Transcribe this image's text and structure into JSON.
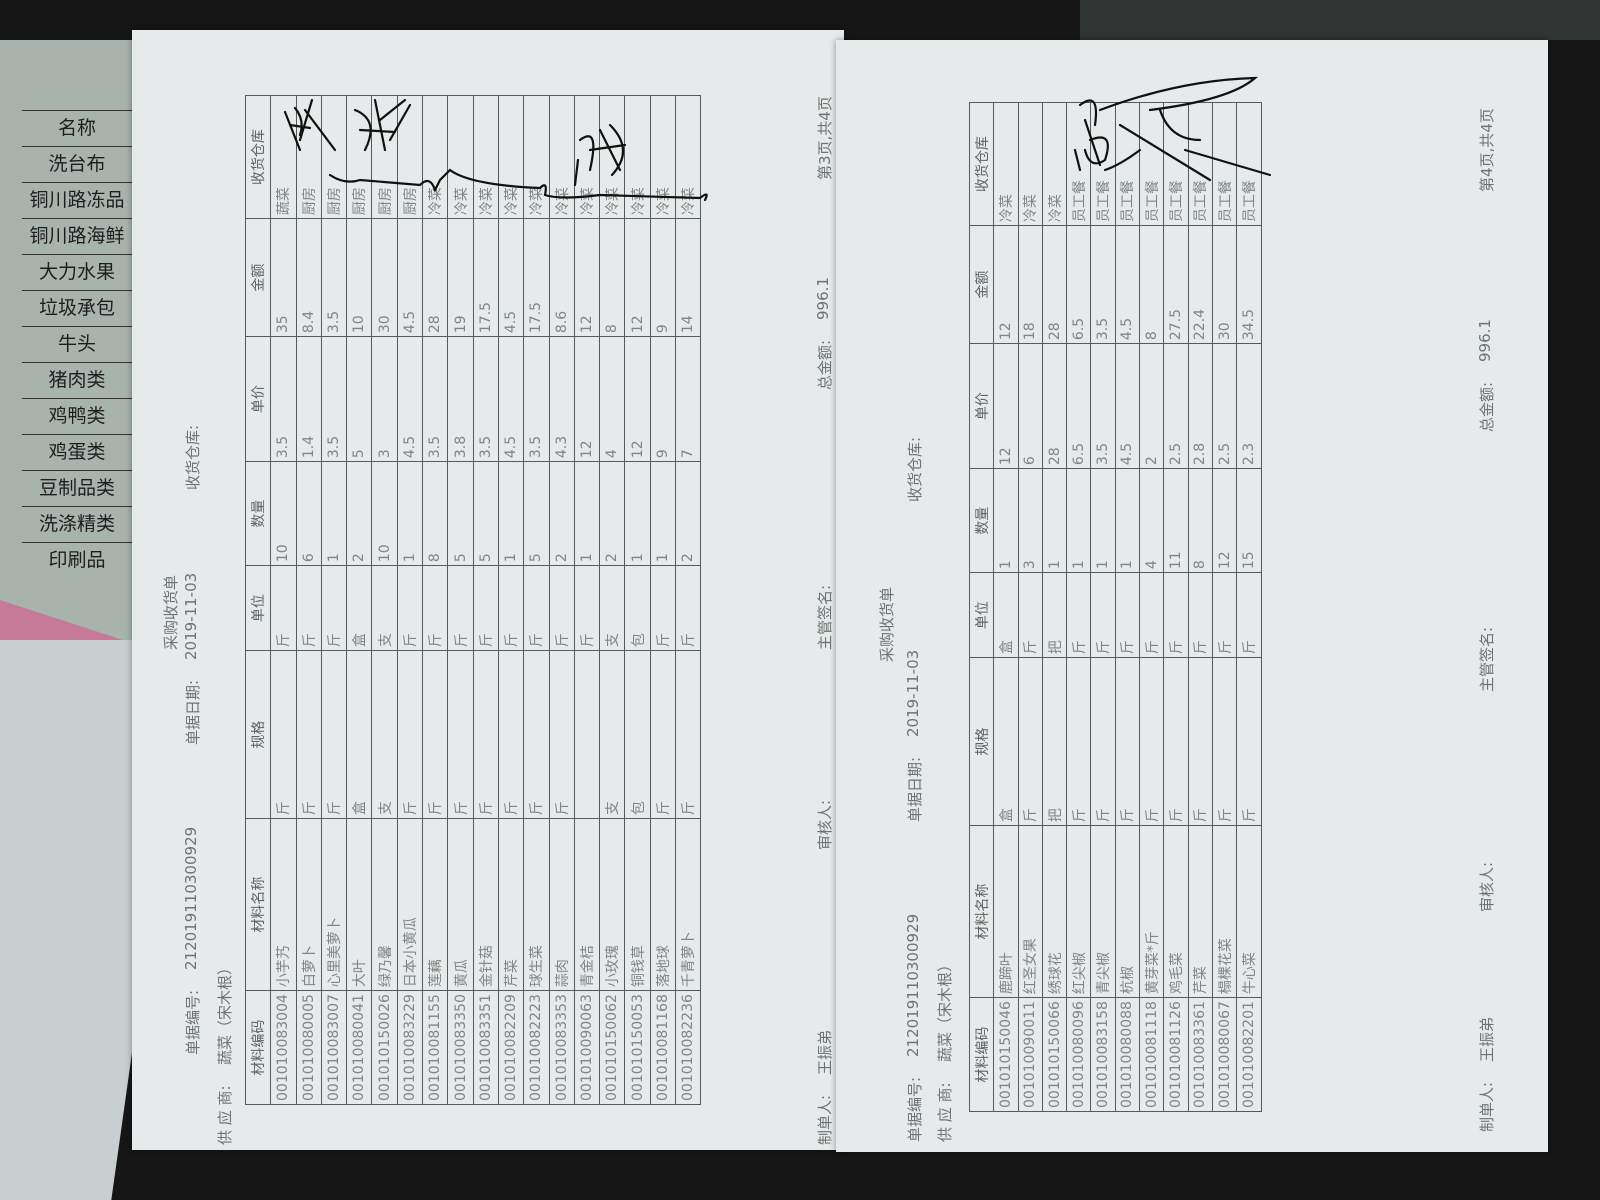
{
  "background_list": {
    "header": "名称",
    "items": [
      "洗台布",
      "铜川路冻品",
      "铜川路海鲜",
      "大力水果",
      "垃圾承包",
      "牛头",
      "猪肉类",
      "鸡鸭类",
      "鸡蛋类",
      "豆制品类",
      "洗涤精类",
      "印刷品"
    ]
  },
  "columns": [
    "材料编码",
    "材料名称",
    "规格",
    "单位",
    "数量",
    "单价",
    "金额",
    "收货仓库"
  ],
  "pages": [
    {
      "title": "采购收货单",
      "doc_no_label": "单据编号:",
      "doc_no": "212019110300929",
      "date_label": "单据日期:",
      "date": "2019-11-03",
      "warehouse_label": "收货仓库:",
      "supplier_label": "供 应 商:",
      "supplier": "蔬菜（宋木根）",
      "maker_label": "制单人:",
      "maker": "王振弟",
      "auditor_label": "审核人:",
      "manager_label": "主管签名:",
      "total_label": "总金额:",
      "total": "996.1",
      "page_info": "第3页,共4页",
      "rows": [
        [
          "001010083004",
          "小芋艿",
          "斤",
          "斤",
          "10",
          "3.5",
          "35",
          "蔬菜"
        ],
        [
          "001010080005",
          "白萝卜",
          "斤",
          "斤",
          "6",
          "1.4",
          "8.4",
          "厨房"
        ],
        [
          "001010083007",
          "心里美萝卜",
          "斤",
          "斤",
          "1",
          "3.5",
          "3.5",
          "厨房"
        ],
        [
          "001010080041",
          "大叶",
          "盒",
          "盒",
          "2",
          "5",
          "10",
          "厨房"
        ],
        [
          "001010150026",
          "绿乃馨",
          "支",
          "支",
          "10",
          "3",
          "30",
          "厨房"
        ],
        [
          "001010083229",
          "日本小黄瓜",
          "斤",
          "斤",
          "1",
          "4.5",
          "4.5",
          "厨房"
        ],
        [
          "001010081155",
          "莲藕",
          "斤",
          "斤",
          "8",
          "3.5",
          "28",
          "冷菜"
        ],
        [
          "001010083350",
          "黄瓜",
          "斤",
          "斤",
          "5",
          "3.8",
          "19",
          "冷菜"
        ],
        [
          "001010083351",
          "金针菇",
          "斤",
          "斤",
          "5",
          "3.5",
          "17.5",
          "冷菜"
        ],
        [
          "001010082209",
          "芹菜",
          "斤",
          "斤",
          "1",
          "4.5",
          "4.5",
          "冷菜"
        ],
        [
          "001010082223",
          "球生菜",
          "斤",
          "斤",
          "5",
          "3.5",
          "17.5",
          "冷菜"
        ],
        [
          "001010083353",
          "蒜肉",
          "斤",
          "斤",
          "2",
          "4.3",
          "8.6",
          "冷菜"
        ],
        [
          "001010090063",
          "青金桔",
          "",
          "斤",
          "1",
          "12",
          "12",
          "冷菜"
        ],
        [
          "001010150062",
          "小玫瑰",
          "支",
          "支",
          "2",
          "4",
          "8",
          "冷菜"
        ],
        [
          "001010150053",
          "铜钱草",
          "包",
          "包",
          "1",
          "12",
          "12",
          "冷菜"
        ],
        [
          "001010081168",
          "落地球",
          "斤",
          "斤",
          "1",
          "9",
          "9",
          "冷菜"
        ],
        [
          "001010082236",
          "千青萝卜",
          "斤",
          "斤",
          "2",
          "7",
          "14",
          "冷菜"
        ]
      ]
    },
    {
      "title": "采购收货单",
      "doc_no_label": "单据编号:",
      "doc_no": "212019110300929",
      "date_label": "单据日期:",
      "date": "2019-11-03",
      "warehouse_label": "收货仓库:",
      "supplier_label": "供 应 商:",
      "supplier": "蔬菜（宋木根）",
      "maker_label": "制单人:",
      "maker": "王振弟",
      "auditor_label": "审核人:",
      "manager_label": "主管签名:",
      "total_label": "总金额:",
      "total": "996.1",
      "page_info": "第4页,共4页",
      "rows": [
        [
          "001010150046",
          "鹿蹄叶",
          "盒",
          "盒",
          "1",
          "12",
          "12",
          "冷菜"
        ],
        [
          "001010090011",
          "红圣女果",
          "斤",
          "斤",
          "3",
          "6",
          "18",
          "冷菜"
        ],
        [
          "001010150066",
          "绣球花",
          "把",
          "把",
          "1",
          "28",
          "28",
          "冷菜"
        ],
        [
          "001010080096",
          "红尖椒",
          "斤",
          "斤",
          "1",
          "6.5",
          "6.5",
          "员工餐"
        ],
        [
          "001010083158",
          "青尖椒",
          "斤",
          "斤",
          "1",
          "3.5",
          "3.5",
          "员工餐"
        ],
        [
          "001010080088",
          "杭椒",
          "斤",
          "斤",
          "1",
          "4.5",
          "4.5",
          "员工餐"
        ],
        [
          "001010081118",
          "黄芽菜*斤",
          "斤",
          "斤",
          "4",
          "2",
          "8",
          "员工餐"
        ],
        [
          "001010081126",
          "鸡毛菜",
          "斤",
          "斤",
          "11",
          "2.5",
          "27.5",
          "员工餐"
        ],
        [
          "001010083361",
          "芹菜",
          "斤",
          "斤",
          "8",
          "2.8",
          "22.4",
          "员工餐"
        ],
        [
          "001010080067",
          "榻棵花菜",
          "斤",
          "斤",
          "12",
          "2.5",
          "30",
          "员工餐"
        ],
        [
          "001010082201",
          "牛心菜",
          "斤",
          "斤",
          "15",
          "2.3",
          "34.5",
          "员工餐"
        ]
      ]
    }
  ],
  "colors": {
    "paper": "#e6eaea",
    "ink": "#111111",
    "print": "#7b8180"
  }
}
